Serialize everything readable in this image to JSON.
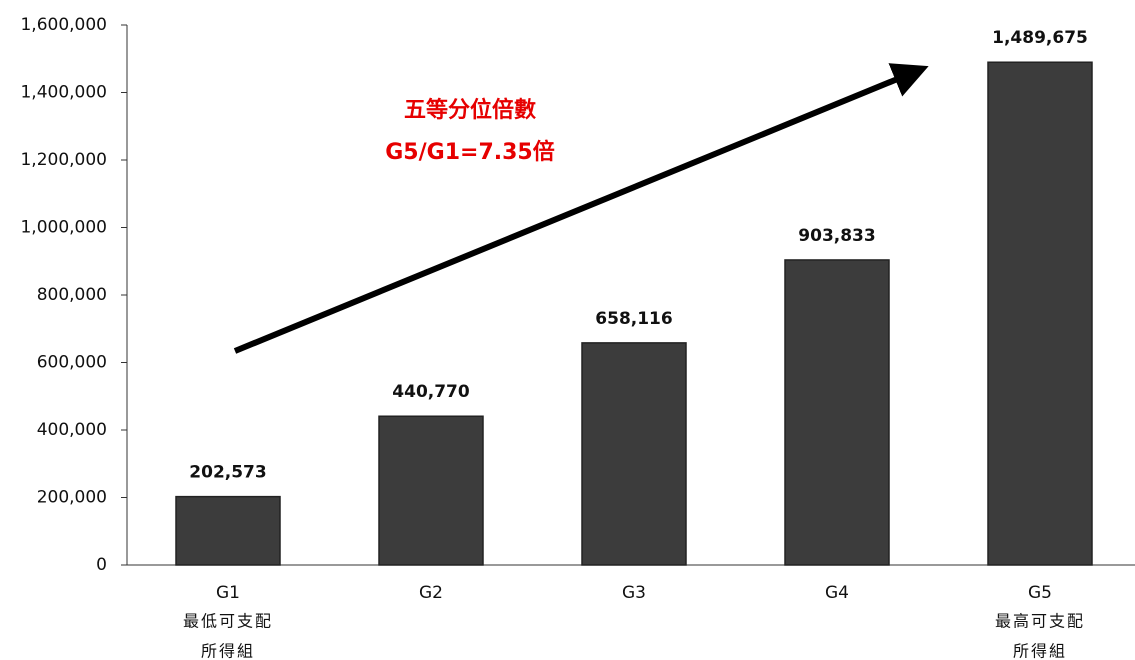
{
  "chart_data": {
    "type": "bar",
    "categories": [
      "G1",
      "G2",
      "G3",
      "G4",
      "G5"
    ],
    "category_notes": [
      [
        "最低可支配",
        "所得組"
      ],
      null,
      null,
      null,
      [
        "最高可支配",
        "所得組"
      ]
    ],
    "values": [
      202573,
      440770,
      658116,
      903833,
      1489675
    ],
    "value_labels": [
      "202,573",
      "440,770",
      "658,116",
      "903,833",
      "1,489,675"
    ],
    "color": "#3c3c3c",
    "ylim": [
      0,
      1600000
    ],
    "yticks": [
      0,
      {
        "value": 200000,
        "label": "200,000"
      },
      {
        "value": 400000,
        "label": "400,000"
      },
      {
        "value": 600000,
        "label": "600,000"
      },
      {
        "value": 800000,
        "label": "800,000"
      },
      {
        "value": 1000000,
        "label": "1,000,000"
      },
      {
        "value": 1200000,
        "label": "1,200,000"
      },
      {
        "value": 1400000,
        "label": "1,400,000"
      },
      {
        "value": 1600000,
        "label": "1,600,000"
      }
    ],
    "annotations": [
      "五等分位倍數",
      "G5/G1=7.35倍"
    ]
  }
}
